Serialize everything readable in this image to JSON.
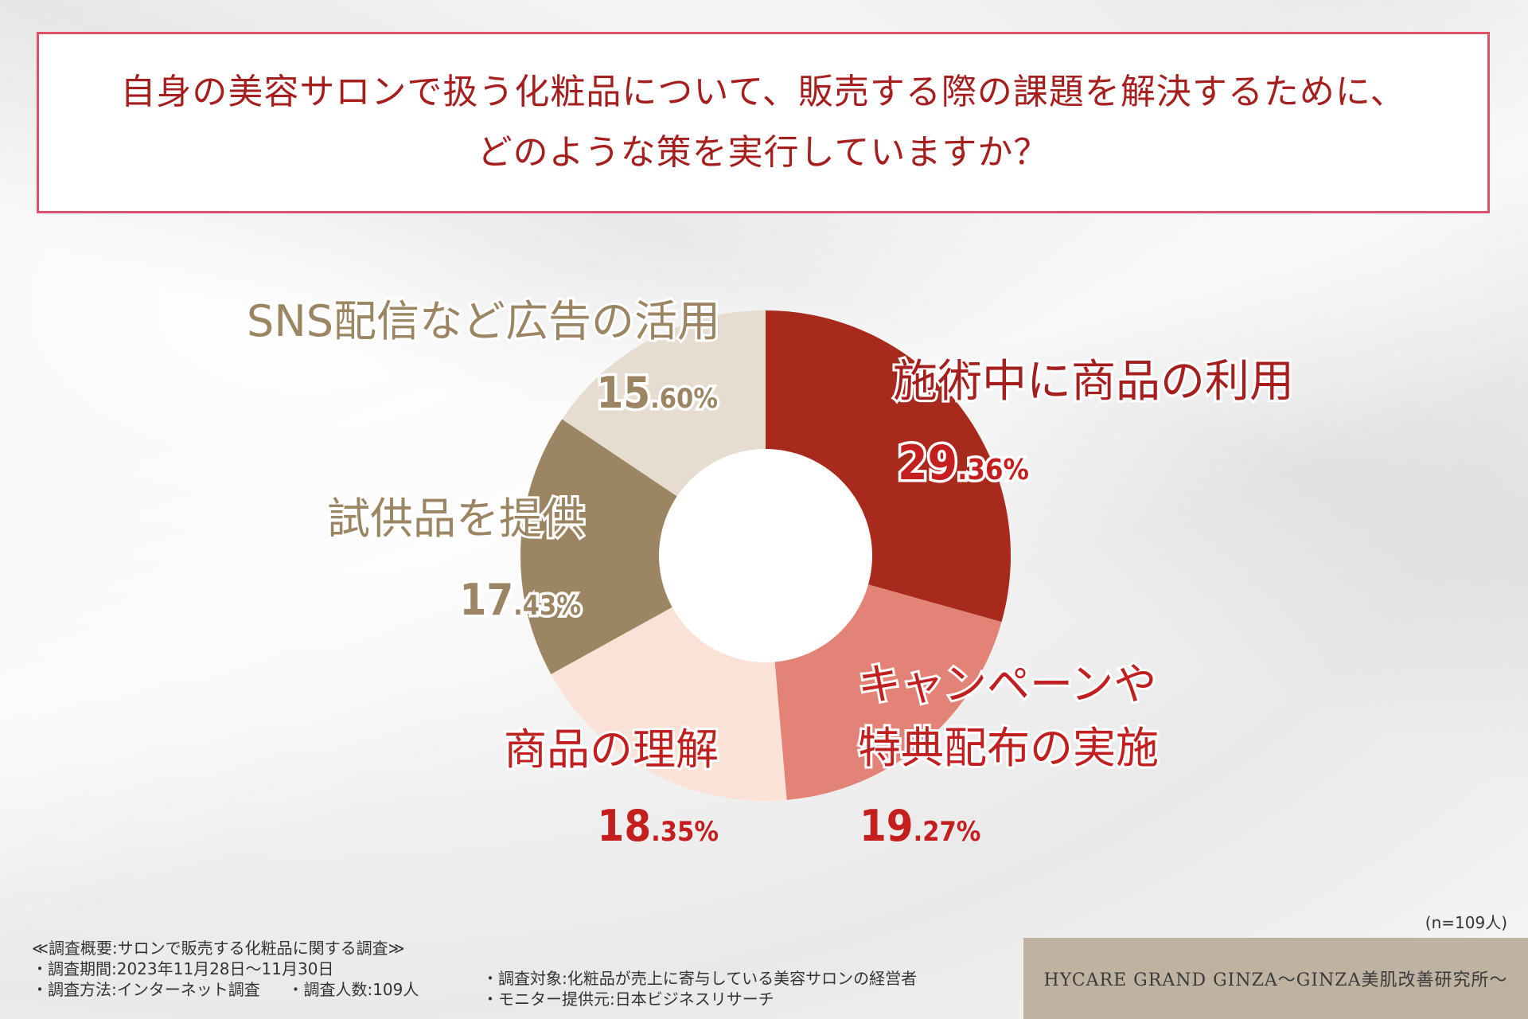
{
  "title": {
    "line1": "自身の美容サロンで扱う化粧品について、販売する際の課題を解決するために、",
    "line2": "どのような策を実行していますか？"
  },
  "chart_data": {
    "type": "pie",
    "variant": "donut",
    "unit": "%",
    "slices": [
      {
        "label": "施術中に商品の利用",
        "label_lines": [
          "施術中に商品の利用"
        ],
        "value": 29.36,
        "int": "29",
        "dec": ".36%",
        "color": "#a82a1c",
        "label_color": "#a51f1f",
        "pct_color": "#c41e1e",
        "pct_outline": true
      },
      {
        "label": "キャンペーンや特典配布の実施",
        "label_lines": [
          "キャンペーンや",
          "特典配布の実施"
        ],
        "value": 19.27,
        "int": "19",
        "dec": ".27%",
        "color": "#e38378",
        "label_color": "#c02020",
        "pct_color": "#c41e1e",
        "pct_outline": false
      },
      {
        "label": "商品の理解",
        "label_lines": [
          "商品の理解"
        ],
        "value": 18.35,
        "int": "18",
        "dec": ".35%",
        "color": "#fbe2d6",
        "label_color": "#c02020",
        "pct_color": "#c41e1e",
        "pct_outline": false
      },
      {
        "label": "試供品を提供",
        "label_lines": [
          "試供品を提供"
        ],
        "value": 17.43,
        "int": "17",
        "dec": ".43%",
        "color": "#9b8562",
        "label_color": "#9b8562",
        "pct_color": "#9b8562",
        "pct_outline": true
      },
      {
        "label": "SNS配信など広告の活用",
        "label_lines": [
          "SNS配信など広告の活用"
        ],
        "value": 15.6,
        "int": "15",
        "dec": ".60%",
        "color": "#e6dccf",
        "label_color": "#9b8562",
        "pct_color": "#9b8562",
        "pct_outline": true
      }
    ]
  },
  "sample_note": "(n=109人)",
  "survey": {
    "heading": "≪調査概要:サロンで販売する化粧品に関する調査≫",
    "period": "・調査期間:2023年11月28日〜11月30日",
    "method": "・調査方法:インターネット調査",
    "count": "・調査人数:109人",
    "target": "・調査対象:化粧品が売上に寄与している美容サロンの経営者",
    "provider": "・モニター提供元:日本ビジネスリサーチ"
  },
  "brand": "HYCARE GRAND GINZA〜GINZA美肌改善研究所〜"
}
